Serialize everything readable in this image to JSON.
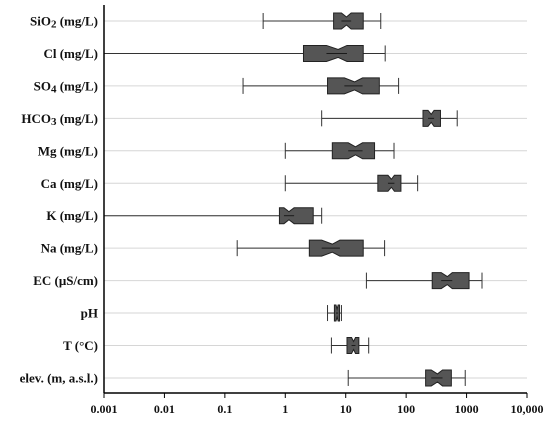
{
  "chart_data": {
    "type": "boxplot",
    "orientation": "horizontal",
    "notched": true,
    "x_scale": "log",
    "xlim": [
      0.001,
      10000
    ],
    "x_ticks": [
      0.001,
      0.01,
      0.1,
      1,
      10,
      100,
      1000,
      10000
    ],
    "x_tick_labels": [
      "0.001",
      "0.01",
      "0.1",
      "1",
      "10",
      "100",
      "1000",
      "10,000"
    ],
    "grid": "horizontal",
    "colors": {
      "box": "#555555",
      "box_edge": "#222222",
      "whisker": "#333333",
      "axis": "#000000",
      "grid": "#d6d6d6"
    },
    "categories": [
      {
        "label": "SiO2 (mg/L)",
        "min": 0.43,
        "q1": 6.3,
        "notch_low": 8.5,
        "median": 10.3,
        "notch_high": 12.3,
        "q3": 19.5,
        "max": 38
      },
      {
        "label": "Cl (mg/L)",
        "min": 0.001,
        "q1": 2.0,
        "notch_low": 4.8,
        "median": 7.5,
        "notch_high": 10.5,
        "q3": 19.5,
        "max": 45
      },
      {
        "label": "SO4 (mg/L)",
        "min": 0.2,
        "q1": 5.0,
        "notch_low": 9.5,
        "median": 14,
        "notch_high": 19,
        "q3": 36,
        "max": 75
      },
      {
        "label": "HCO3 (mg/L)",
        "min": 4.0,
        "q1": 190,
        "notch_low": 230,
        "median": 260,
        "notch_high": 290,
        "q3": 370,
        "max": 700
      },
      {
        "label": "Mg (mg/L)",
        "min": 1.0,
        "q1": 6.0,
        "notch_low": 11,
        "median": 14.5,
        "notch_high": 19,
        "q3": 30,
        "max": 63
      },
      {
        "label": "Ca (mg/L)",
        "min": 1.0,
        "q1": 34,
        "notch_low": 50,
        "median": 57,
        "notch_high": 64,
        "q3": 82,
        "max": 155
      },
      {
        "label": "K (mg/L)",
        "min": 0.001,
        "q1": 0.8,
        "notch_low": 0.95,
        "median": 1.15,
        "notch_high": 1.4,
        "q3": 2.9,
        "max": 4.0
      },
      {
        "label": "Na (mg/L)",
        "min": 0.16,
        "q1": 2.5,
        "notch_low": 4.0,
        "median": 6.0,
        "notch_high": 8.0,
        "q3": 19.5,
        "max": 44
      },
      {
        "label": "EC (μS/cm)",
        "min": 22,
        "q1": 270,
        "notch_low": 380,
        "median": 480,
        "notch_high": 580,
        "q3": 1100,
        "max": 1800
      },
      {
        "label": "pH",
        "min": 5.0,
        "q1": 6.5,
        "notch_low": 6.9,
        "median": 7.2,
        "notch_high": 7.5,
        "q3": 7.9,
        "max": 8.5
      },
      {
        "label": "T (°C)",
        "min": 5.8,
        "q1": 10.5,
        "notch_low": 12.5,
        "median": 13.5,
        "notch_high": 14.5,
        "q3": 16.5,
        "max": 24
      },
      {
        "label": "elev.  (m, a.s.l.)",
        "min": 11,
        "q1": 210,
        "notch_low": 260,
        "median": 330,
        "notch_high": 400,
        "q3": 560,
        "max": 950
      }
    ]
  }
}
